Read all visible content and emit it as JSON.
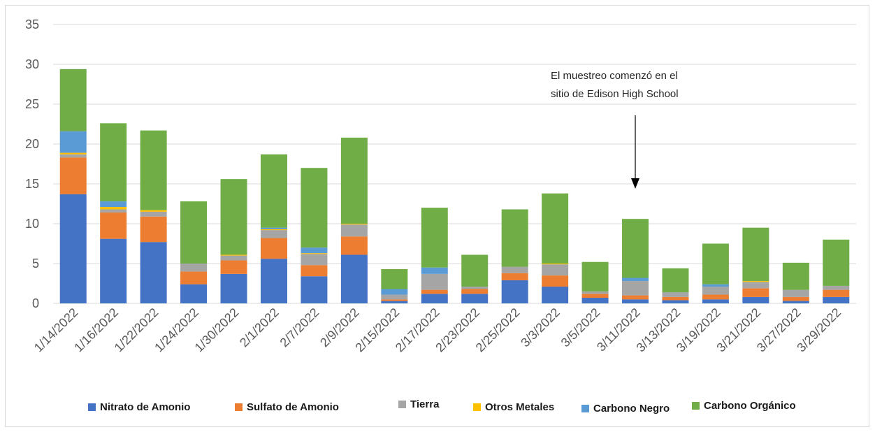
{
  "chart_data": {
    "type": "bar",
    "stacked": true,
    "categories": [
      "1/14/2022",
      "1/16/2022",
      "1/22/2022",
      "1/24/2022",
      "1/30/2022",
      "2/1/2022",
      "2/7/2022",
      "2/9/2022",
      "2/15/2022",
      "2/17/2022",
      "2/23/2022",
      "2/25/2022",
      "3/3/2022",
      "3/5/2022",
      "3/11/2022",
      "3/13/2022",
      "3/19/2022",
      "3/21/2022",
      "3/27/2022",
      "3/29/2022"
    ],
    "ylim": [
      0,
      35
    ],
    "yticks": [
      0,
      5,
      10,
      15,
      20,
      25,
      30,
      35
    ],
    "grid": true,
    "legend_position": "bottom",
    "series": [
      {
        "name": "Nitrato de Amonio",
        "color": "#4472C4",
        "values": [
          13.7,
          8.1,
          7.7,
          2.4,
          3.7,
          5.6,
          3.4,
          6.1,
          0.3,
          1.2,
          1.2,
          2.9,
          2.1,
          0.7,
          0.5,
          0.4,
          0.5,
          0.8,
          0.3,
          0.8
        ]
      },
      {
        "name": "Sulfato de Amonio",
        "color": "#ED7D31",
        "values": [
          4.6,
          3.3,
          3.2,
          1.6,
          1.7,
          2.6,
          1.4,
          2.3,
          0.2,
          0.5,
          0.6,
          0.9,
          1.4,
          0.5,
          0.5,
          0.4,
          0.6,
          1.1,
          0.5,
          0.9
        ]
      },
      {
        "name": "Tierra",
        "color": "#A5A5A5",
        "values": [
          0.4,
          0.4,
          0.6,
          1.0,
          0.6,
          1.0,
          1.4,
          1.5,
          0.6,
          2.0,
          0.3,
          0.8,
          1.4,
          0.3,
          1.8,
          0.6,
          1.0,
          0.8,
          0.9,
          0.5
        ]
      },
      {
        "name": "Otros Metales",
        "color": "#FFC000",
        "values": [
          0.2,
          0.3,
          0.2,
          0.0,
          0.1,
          0.1,
          0.1,
          0.1,
          0.0,
          0.0,
          0.0,
          0.0,
          0.1,
          0.0,
          0.0,
          0.0,
          0.0,
          0.1,
          0.0,
          0.0
        ]
      },
      {
        "name": "Carbono Negro",
        "color": "#5B9BD5",
        "values": [
          2.7,
          0.7,
          0.0,
          0.0,
          0.0,
          0.2,
          0.7,
          0.0,
          0.7,
          0.8,
          0.0,
          0.0,
          0.0,
          0.0,
          0.4,
          0.0,
          0.3,
          0.0,
          0.0,
          0.0
        ]
      },
      {
        "name": "Carbono Orgánico",
        "color": "#70AD47",
        "values": [
          7.8,
          9.8,
          10.0,
          7.8,
          9.5,
          9.2,
          10.0,
          10.8,
          2.5,
          7.5,
          4.0,
          7.2,
          8.8,
          3.7,
          7.4,
          3.0,
          5.1,
          6.7,
          3.4,
          5.8
        ]
      }
    ],
    "annotation": {
      "lines": [
        "El muestreo comenzó en el",
        "sitio de Edison High School"
      ],
      "arrow_target_category": "3/11/2022"
    }
  }
}
